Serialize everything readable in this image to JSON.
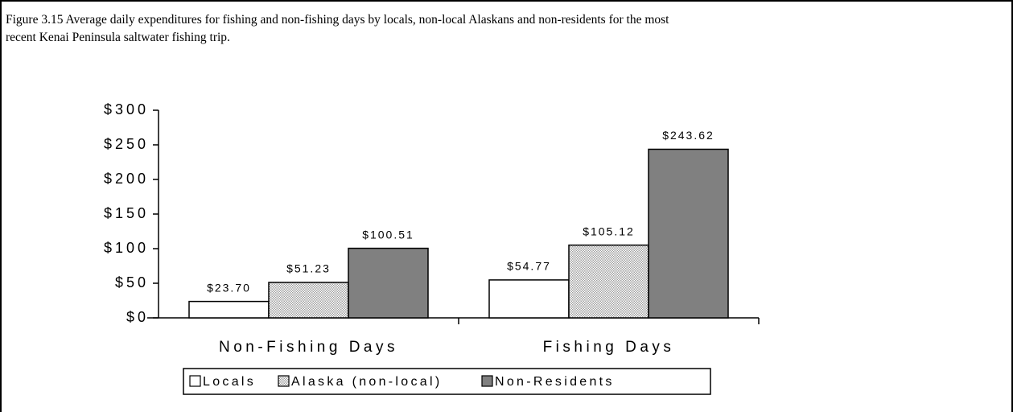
{
  "chart_data": {
    "type": "bar",
    "title": "Figure 3.15  Average daily expenditures for fishing and non-fishing days by locals, non-local Alaskans and non-residents for the most recent Kenai Peninsula saltwater fishing trip.",
    "categories": [
      "Non-Fishing Days",
      "Fishing Days"
    ],
    "series": [
      {
        "name": "Locals",
        "color": "#ffffff",
        "values": [
          23.7,
          54.77
        ],
        "value_labels": [
          "$23.70",
          "$54.77"
        ]
      },
      {
        "name": "Alaska (non-local)",
        "color": "#a0a0a0",
        "values": [
          51.23,
          105.12
        ],
        "value_labels": [
          "$51.23",
          "$105.12"
        ]
      },
      {
        "name": "Non-Residents",
        "color": "#808080",
        "values": [
          100.51,
          243.62
        ],
        "value_labels": [
          "$100.51",
          "$243.62"
        ]
      }
    ],
    "ylim": [
      0,
      300
    ],
    "yticks": [
      {
        "value": 0,
        "label": "$0"
      },
      {
        "value": 50,
        "label": "$50"
      },
      {
        "value": 100,
        "label": "$100"
      },
      {
        "value": 150,
        "label": "$150"
      },
      {
        "value": 200,
        "label": "$200"
      },
      {
        "value": 250,
        "label": "$250"
      },
      {
        "value": 300,
        "label": "$300"
      }
    ],
    "legend": "bottom"
  }
}
